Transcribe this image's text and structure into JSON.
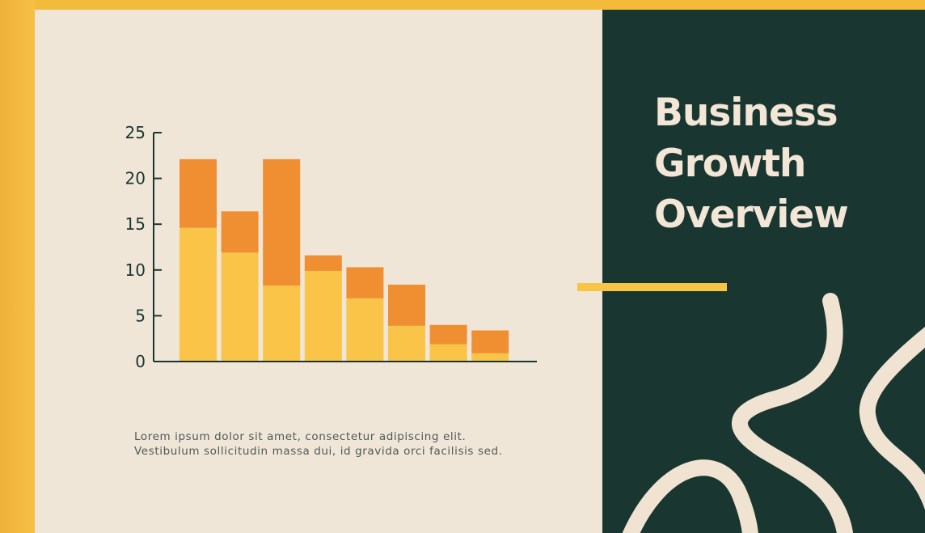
{
  "colors": {
    "background_yellow": "#f3bb3a",
    "cream": "#f0e6d8",
    "dark_green": "#1a3631",
    "bar_lower": "#f9c447",
    "bar_upper": "#ef8f32",
    "title_text": "#f3e6d6",
    "axis": "#1a3631"
  },
  "title": {
    "line1": "Business",
    "line2": "Growth",
    "line3": "Overview"
  },
  "caption": {
    "line1": "Lorem ipsum dolor sit amet, consectetur adipiscing elit.",
    "line2": "Vestibulum sollicitudin massa dui, id gravida orci facilisis sed."
  },
  "chart_data": {
    "type": "bar",
    "stacked": true,
    "title": "",
    "xlabel": "",
    "ylabel": "",
    "ylim": [
      0,
      25
    ],
    "yticks": [
      0,
      5,
      10,
      15,
      20,
      25
    ],
    "grid": false,
    "legend": "none",
    "series": [
      {
        "color": "#f9c447",
        "values": [
          14.6,
          11.9,
          8.3,
          9.9,
          6.9,
          3.9,
          1.9,
          0.9
        ]
      },
      {
        "color": "#ef8f32",
        "values": [
          7.5,
          4.5,
          13.8,
          1.7,
          3.4,
          4.5,
          2.1,
          2.5
        ]
      }
    ]
  }
}
